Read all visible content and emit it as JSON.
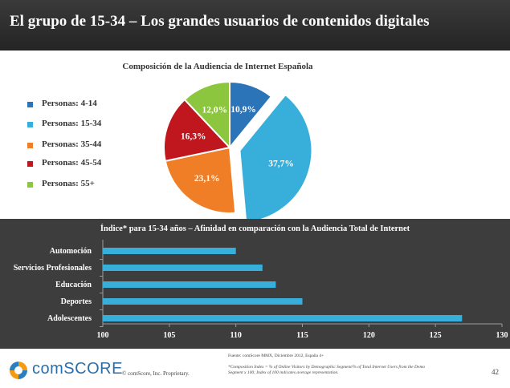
{
  "header": {
    "title": "El grupo de 15-34 – Los grandes usuarios de contenidos digitales"
  },
  "colors": {
    "4-14": "#2b74b8",
    "15-34": "#38aedb",
    "35-44": "#f07e26",
    "45-54": "#c0171f",
    "55+": "#8cc63f",
    "bar": "#38aedb",
    "dark_panel": "#3d3d3d"
  },
  "chart_data": [
    {
      "type": "pie",
      "title": "Composición de la Audiencia de Internet Española",
      "legend_position": "left",
      "slices": [
        {
          "label": "Personas: 4-14",
          "value": 10.9,
          "value_label": "10,9%",
          "color_key": "4-14",
          "exploded": false
        },
        {
          "label": "Personas: 15-34",
          "value": 37.7,
          "value_label": "37,7%",
          "color_key": "15-34",
          "exploded": true
        },
        {
          "label": "Personas: 35-44",
          "value": 23.1,
          "value_label": "23,1%",
          "color_key": "35-44",
          "exploded": false
        },
        {
          "label": "Personas: 45-54",
          "value": 16.3,
          "value_label": "16,3%",
          "color_key": "45-54",
          "exploded": false
        },
        {
          "label": "Personas: 55+",
          "value": 12.0,
          "value_label": "12,0%",
          "color_key": "55+",
          "exploded": false
        }
      ]
    },
    {
      "type": "bar",
      "orientation": "horizontal",
      "title": "Índice* para 15-34 años – Afinidad en comparación con la Audiencia Total de Internet",
      "categories": [
        "Automoción",
        "Servicios Profesionales",
        "Educación",
        "Deportes",
        "Adolescentes"
      ],
      "values": [
        110,
        112,
        113,
        115,
        127
      ],
      "xlim": [
        100,
        130
      ],
      "xticks": [
        "100",
        "105",
        "110",
        "115",
        "120",
        "125",
        "130"
      ],
      "grid": false
    }
  ],
  "footer": {
    "logo_text": "comSCORE",
    "copyright": "© comScore, Inc.      Proprietary.",
    "source": "Fuente: comScore MMX, Diciembre 2012, España 4+",
    "note": "*Composition Index = % of Online Visitors by Demographic Segment/% of Total Internet Users from the Demo Segment x 100; Index of 100 indicates average representation.",
    "page_number": "42"
  }
}
